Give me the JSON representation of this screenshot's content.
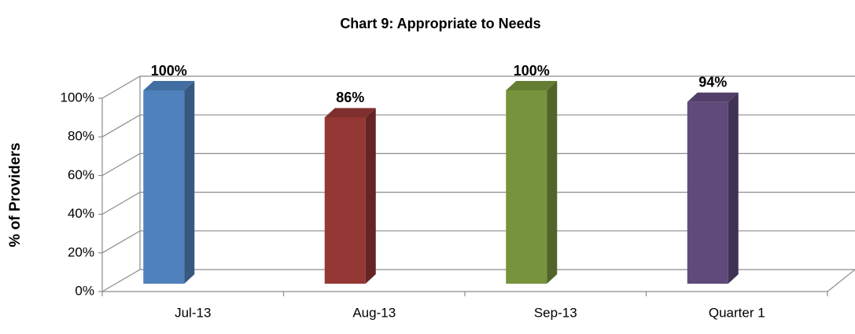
{
  "chart_data": {
    "type": "bar3d",
    "title": "Chart 9: Appropriate to Needs",
    "y_label": "% of Providers",
    "categories": [
      "Jul-13",
      "Aug-13",
      "Sep-13",
      "Quarter 1"
    ],
    "values": [
      100,
      86,
      100,
      94
    ],
    "value_labels": [
      "100%",
      "86%",
      "100%",
      "94%"
    ],
    "colors": [
      "#4f81bd",
      "#953735",
      "#77933c",
      "#604a7b"
    ],
    "ylim": [
      0,
      100
    ],
    "yticks": [
      {
        "value": 0,
        "label": "0%"
      },
      {
        "value": 20,
        "label": "20%"
      },
      {
        "value": 40,
        "label": "40%"
      },
      {
        "value": 60,
        "label": "60%"
      },
      {
        "value": 80,
        "label": "80%"
      },
      {
        "value": 100,
        "label": "100%"
      }
    ],
    "grid": true
  }
}
